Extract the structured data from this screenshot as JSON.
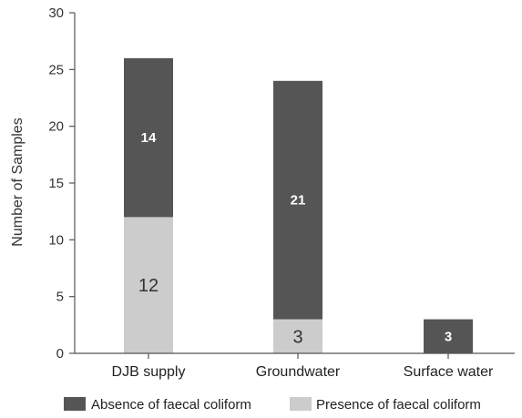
{
  "chart_data": {
    "type": "bar",
    "stacked": true,
    "categories": [
      "DJB supply",
      "Groundwater",
      "Surface water"
    ],
    "series": [
      {
        "name": "Presence of faecal coliform",
        "values": [
          12,
          3,
          0
        ],
        "color": "#cccccc"
      },
      {
        "name": "Absence of faecal coliform",
        "values": [
          14,
          21,
          3
        ],
        "color": "#555555"
      }
    ],
    "title": "",
    "xlabel": "",
    "ylabel": "Number of Samples",
    "ylim": [
      0,
      30
    ],
    "yticks": [
      0,
      5,
      10,
      15,
      20,
      25,
      30
    ],
    "grid": false,
    "legend": {
      "placement": "bottom",
      "entries": [
        "Absence of faecal coliform",
        "Presence of faecal coliform"
      ]
    }
  }
}
